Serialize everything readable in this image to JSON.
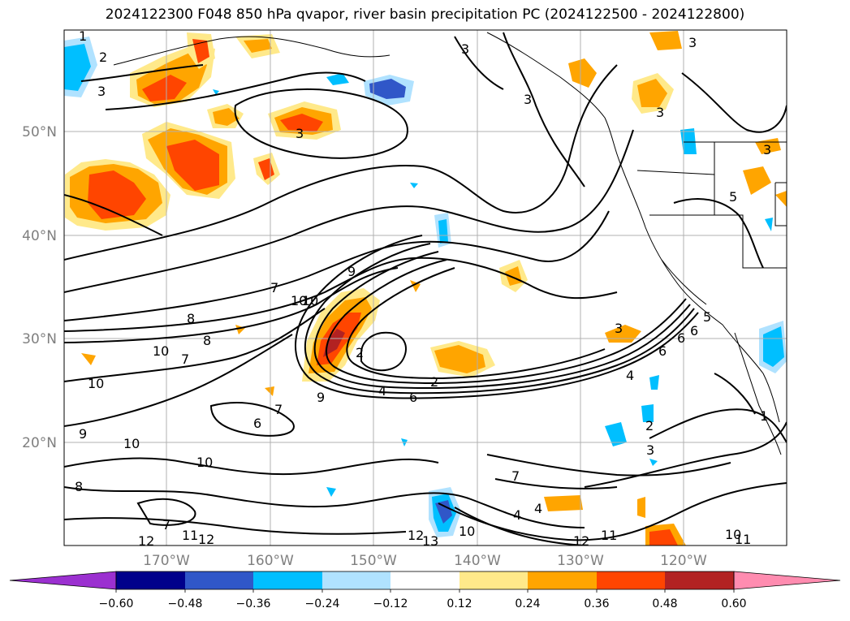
{
  "title": "2024122300 F048 850 hPa qvapor, river basin precipitation PC (2024122500 - 2024122800)",
  "map": {
    "lat_labels": [
      "50°N",
      "40°N",
      "30°N",
      "20°N"
    ],
    "lon_labels": [
      "170°W",
      "160°W",
      "150°W",
      "140°W",
      "130°W",
      "120°W"
    ],
    "contour_labels": [
      "1",
      "2",
      "3",
      "3",
      "3",
      "3",
      "3",
      "9",
      "7",
      "10",
      "8",
      "8",
      "10",
      "7",
      "9",
      "10",
      "4",
      "6",
      "2",
      "2",
      "3",
      "4",
      "6",
      "6",
      "6",
      "5",
      "7",
      "6",
      "10",
      "9",
      "10",
      "8",
      "7",
      "10",
      "11",
      "12",
      "7",
      "4",
      "4",
      "12",
      "12",
      "13",
      "10",
      "11",
      "12",
      "2",
      "3",
      "1",
      "11",
      "10",
      "5",
      "3",
      "3"
    ]
  },
  "colorbar": {
    "ticks": [
      "−0.60",
      "−0.48",
      "−0.36",
      "−0.24",
      "−0.12",
      "0.12",
      "0.24",
      "0.36",
      "0.48",
      "0.60"
    ],
    "colors": [
      "#9b30d0",
      "#00008b",
      "#3057c8",
      "#00bfff",
      "#b0e2ff",
      "#ffffff",
      "#ffe98a",
      "#ffa500",
      "#ff4500",
      "#b22222",
      "#ff8cb0"
    ]
  }
}
